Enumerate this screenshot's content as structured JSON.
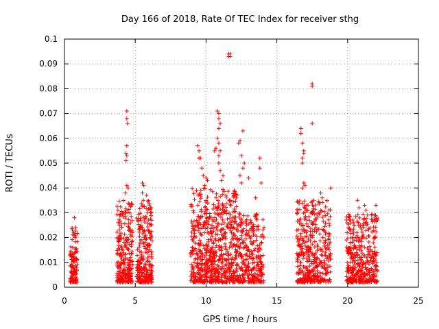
{
  "chart_data": {
    "type": "scatter",
    "title": "Day 166 of 2018, Rate Of TEC Index for receiver sthg",
    "xlabel": "GPS time / hours",
    "ylabel": "ROTI / TECUs",
    "xlim": [
      0,
      25
    ],
    "ylim": [
      0,
      0.1
    ],
    "grid": true,
    "marker": "+",
    "color": "#ff0000",
    "x_ticks": [
      0,
      5,
      10,
      15,
      20,
      25
    ],
    "x_tick_labels": [
      "0",
      "5",
      "10",
      "15",
      "20",
      "25"
    ],
    "y_ticks": [
      0,
      0.01,
      0.02,
      0.03,
      0.04,
      0.05,
      0.06,
      0.07,
      0.08,
      0.09,
      0.1
    ],
    "y_tick_labels": [
      "0",
      "0.01",
      "0.02",
      "0.03",
      "0.04",
      "0.05",
      "0.06",
      "0.07",
      "0.08",
      "0.09",
      "0.1"
    ],
    "series": [
      {
        "name": "ROTI",
        "clusters": [
          {
            "x_range": [
              0.4,
              0.9
            ],
            "y_range": [
              0.002,
              0.024
            ],
            "count": 120,
            "seed": 11
          },
          {
            "x_range": [
              3.7,
              4.8
            ],
            "y_range": [
              0.002,
              0.035
            ],
            "count": 260,
            "seed": 12
          },
          {
            "x_range": [
              5.1,
              6.2
            ],
            "y_range": [
              0.002,
              0.035
            ],
            "count": 260,
            "seed": 13
          },
          {
            "x_range": [
              8.9,
              10.2
            ],
            "y_range": [
              0.002,
              0.04
            ],
            "count": 260,
            "seed": 14
          },
          {
            "x_range": [
              10.2,
              12.2
            ],
            "y_range": [
              0.002,
              0.04
            ],
            "count": 420,
            "seed": 15
          },
          {
            "x_range": [
              12.2,
              14.1
            ],
            "y_range": [
              0.002,
              0.03
            ],
            "count": 300,
            "seed": 16
          },
          {
            "x_range": [
              16.4,
              17.7
            ],
            "y_range": [
              0.002,
              0.035
            ],
            "count": 280,
            "seed": 17
          },
          {
            "x_range": [
              17.7,
              18.8
            ],
            "y_range": [
              0.002,
              0.035
            ],
            "count": 160,
            "seed": 18
          },
          {
            "x_range": [
              19.9,
              21.2
            ],
            "y_range": [
              0.002,
              0.03
            ],
            "count": 260,
            "seed": 19
          },
          {
            "x_range": [
              21.2,
              22.1
            ],
            "y_range": [
              0.002,
              0.03
            ],
            "count": 140,
            "seed": 20
          }
        ],
        "points": [
          [
            0.7,
            0.028
          ],
          [
            0.8,
            0.024
          ],
          [
            4.4,
            0.071
          ],
          [
            4.4,
            0.068
          ],
          [
            4.45,
            0.066
          ],
          [
            4.4,
            0.057
          ],
          [
            4.35,
            0.054
          ],
          [
            4.4,
            0.053
          ],
          [
            4.35,
            0.051
          ],
          [
            4.4,
            0.041
          ],
          [
            4.5,
            0.04
          ],
          [
            4.3,
            0.038
          ],
          [
            5.5,
            0.042
          ],
          [
            5.6,
            0.041
          ],
          [
            5.5,
            0.038
          ],
          [
            5.8,
            0.037
          ],
          [
            9.4,
            0.057
          ],
          [
            9.5,
            0.055
          ],
          [
            9.5,
            0.052
          ],
          [
            9.6,
            0.052
          ],
          [
            9.7,
            0.048
          ],
          [
            9.8,
            0.045
          ],
          [
            10.0,
            0.044
          ],
          [
            10.1,
            0.043
          ],
          [
            9.9,
            0.041
          ],
          [
            10.8,
            0.071
          ],
          [
            10.9,
            0.07
          ],
          [
            10.9,
            0.068
          ],
          [
            11.0,
            0.066
          ],
          [
            10.9,
            0.064
          ],
          [
            10.8,
            0.06
          ],
          [
            10.9,
            0.058
          ],
          [
            11.0,
            0.055
          ],
          [
            10.7,
            0.056
          ],
          [
            10.6,
            0.055
          ],
          [
            10.9,
            0.053
          ],
          [
            10.9,
            0.05
          ],
          [
            11.0,
            0.047
          ],
          [
            11.2,
            0.045
          ],
          [
            11.1,
            0.043
          ],
          [
            11.6,
            0.094
          ],
          [
            11.7,
            0.094
          ],
          [
            11.6,
            0.093
          ],
          [
            11.7,
            0.093
          ],
          [
            12.6,
            0.063
          ],
          [
            12.4,
            0.059
          ],
          [
            12.3,
            0.058
          ],
          [
            12.5,
            0.053
          ],
          [
            12.7,
            0.05
          ],
          [
            12.6,
            0.048
          ],
          [
            12.4,
            0.045
          ],
          [
            12.5,
            0.042
          ],
          [
            13.0,
            0.044
          ],
          [
            13.5,
            0.036
          ],
          [
            13.8,
            0.052
          ],
          [
            13.8,
            0.048
          ],
          [
            13.9,
            0.042
          ],
          [
            16.7,
            0.064
          ],
          [
            16.7,
            0.062
          ],
          [
            16.8,
            0.058
          ],
          [
            16.9,
            0.055
          ],
          [
            16.9,
            0.054
          ],
          [
            16.8,
            0.052
          ],
          [
            16.8,
            0.05
          ],
          [
            16.9,
            0.042
          ],
          [
            17.0,
            0.041
          ],
          [
            16.8,
            0.04
          ],
          [
            17.5,
            0.082
          ],
          [
            17.5,
            0.081
          ],
          [
            17.5,
            0.066
          ],
          [
            17.6,
            0.035
          ],
          [
            18.1,
            0.038
          ],
          [
            18.2,
            0.036
          ],
          [
            18.8,
            0.04
          ],
          [
            20.2,
            0.027
          ],
          [
            20.4,
            0.026
          ],
          [
            20.7,
            0.035
          ],
          [
            20.8,
            0.032
          ],
          [
            21.2,
            0.033
          ],
          [
            21.3,
            0.031
          ],
          [
            22.0,
            0.033
          ],
          [
            22.1,
            0.027
          ]
        ]
      }
    ]
  }
}
